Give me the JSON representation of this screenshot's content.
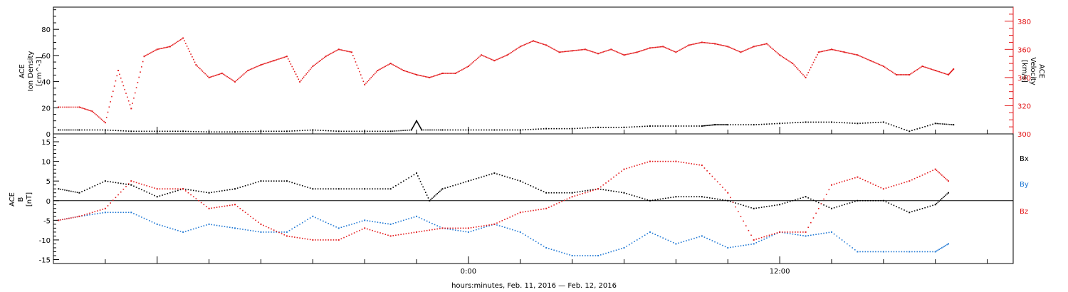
{
  "chart_data": [
    {
      "type": "scatter",
      "panel": "top",
      "ylabel_left": [
        "ACE",
        "Ion Density",
        "[cm^-3]"
      ],
      "ylabel_right": [
        "ACE",
        "Velocity",
        "[km/s]"
      ],
      "ylim_left": [
        0,
        97
      ],
      "ylim_right": [
        300,
        390
      ],
      "left_ticks": [
        "0",
        "20",
        "40",
        "60",
        "80"
      ],
      "right_ticks": [
        "300",
        "320",
        "340",
        "360",
        "380"
      ],
      "series": [
        {
          "name": "",
          "axis": "left",
          "color": "#000000",
          "x": [
            -15.8,
            -15,
            -14,
            -13,
            -12,
            -11,
            -10,
            -9,
            -8,
            -7,
            -6,
            -5,
            -4,
            -3,
            -2.2,
            -2,
            -1.8,
            -1,
            0,
            1,
            2,
            3,
            4,
            5,
            6,
            7,
            8,
            9,
            9.5,
            10,
            11,
            12,
            13,
            14,
            15,
            16,
            17,
            18,
            18.7
          ],
          "y": [
            3,
            3,
            3,
            2,
            2,
            2,
            1.5,
            1.5,
            2,
            2,
            3,
            2,
            2,
            2,
            3,
            10,
            3,
            3,
            3,
            3,
            3,
            4,
            4,
            5,
            5,
            6,
            6,
            6,
            7,
            7,
            7,
            8,
            9,
            9,
            8,
            9,
            2,
            8,
            7
          ]
        },
        {
          "name": "",
          "axis": "right",
          "color": "#e31a1c",
          "x": [
            -15.8,
            -15,
            -14.5,
            -14,
            -13.5,
            -13,
            -12.5,
            -12,
            -11.5,
            -11,
            -10.5,
            -10,
            -9.5,
            -9,
            -8.5,
            -8,
            -7.5,
            -7,
            -6.5,
            -6,
            -5.5,
            -5,
            -4.5,
            -4,
            -3.5,
            -3,
            -2.5,
            -2,
            -1.5,
            -1,
            -0.5,
            0,
            0.5,
            1,
            1.5,
            2,
            2.5,
            3,
            3.5,
            4,
            4.5,
            5,
            5.5,
            6,
            6.5,
            7,
            7.5,
            8,
            8.5,
            9,
            9.5,
            10,
            10.5,
            11,
            11.5,
            12,
            12.5,
            13,
            13.5,
            14,
            14.5,
            15,
            15.5,
            16,
            16.5,
            17,
            17.5,
            18,
            18.5,
            18.7
          ],
          "y": [
            319,
            319,
            316,
            308,
            345,
            318,
            355,
            360,
            362,
            368,
            349,
            340,
            343,
            337,
            345,
            349,
            352,
            355,
            337,
            348,
            355,
            360,
            358,
            335,
            345,
            350,
            345,
            342,
            340,
            343,
            343,
            348,
            356,
            352,
            356,
            362,
            366,
            363,
            358,
            359,
            360,
            357,
            360,
            356,
            358,
            361,
            362,
            358,
            363,
            365,
            364,
            362,
            358,
            362,
            364,
            356,
            350,
            340,
            358,
            360,
            358,
            356,
            352,
            348,
            342,
            342,
            348,
            345,
            342,
            346
          ]
        }
      ]
    },
    {
      "type": "scatter",
      "panel": "bottom",
      "ylabel": [
        "ACE",
        "B",
        "[nT]"
      ],
      "ylim": [
        -16,
        17
      ],
      "ticks": [
        "-15",
        "-10",
        "-5",
        "0",
        "5",
        "10",
        "15"
      ],
      "zero_line": true,
      "legend_position": "right",
      "series": [
        {
          "name": "Bx",
          "color": "#000000",
          "x": [
            -15.8,
            -15,
            -14,
            -13,
            -12,
            -11,
            -10,
            -9,
            -8,
            -7,
            -6,
            -5,
            -4,
            -3,
            -2,
            -1.5,
            -1,
            0,
            1,
            2,
            3,
            4,
            5,
            6,
            7,
            8,
            9,
            10,
            11,
            12,
            13,
            14,
            15,
            16,
            17,
            18,
            18.5
          ],
          "y": [
            3,
            2,
            5,
            4,
            1,
            3,
            2,
            3,
            5,
            5,
            3,
            3,
            3,
            3,
            7,
            0,
            3,
            5,
            7,
            5,
            2,
            2,
            3,
            2,
            0,
            1,
            1,
            0,
            -2,
            -1,
            1,
            -2,
            0,
            0,
            -3,
            -1,
            2
          ]
        },
        {
          "name": "By",
          "color": "#1f78d4",
          "x": [
            -15.8,
            -15,
            -14,
            -13,
            -12,
            -11,
            -10,
            -9,
            -8,
            -7,
            -6,
            -5,
            -4,
            -3,
            -2,
            -1,
            0,
            1,
            2,
            3,
            4,
            5,
            6,
            7,
            8,
            9,
            10,
            11,
            12,
            13,
            14,
            15,
            16,
            17,
            18,
            18.5
          ],
          "y": [
            -5,
            -4,
            -3,
            -3,
            -6,
            -8,
            -6,
            -7,
            -8,
            -8,
            -4,
            -7,
            -5,
            -6,
            -4,
            -7,
            -8,
            -6,
            -8,
            -12,
            -14,
            -14,
            -12,
            -8,
            -11,
            -9,
            -12,
            -11,
            -8,
            -9,
            -8,
            -13,
            -13,
            -13,
            -13,
            -11
          ]
        },
        {
          "name": "Bz",
          "color": "#e31a1c",
          "x": [
            -15.8,
            -15,
            -14,
            -13,
            -12,
            -11,
            -10,
            -9,
            -8,
            -7,
            -6,
            -5,
            -4,
            -3,
            -2,
            -1,
            0,
            1,
            2,
            3,
            4,
            5,
            6,
            7,
            8,
            9,
            10,
            11,
            12,
            13,
            14,
            15,
            16,
            17,
            18,
            18.5
          ],
          "y": [
            -5,
            -4,
            -2,
            5,
            3,
            3,
            -2,
            -1,
            -6,
            -9,
            -10,
            -10,
            -7,
            -9,
            -8,
            -7,
            -7,
            -6,
            -3,
            -2,
            1,
            3,
            8,
            10,
            10,
            9,
            2,
            -10,
            -8,
            -8,
            4,
            6,
            3,
            5,
            8,
            5
          ]
        }
      ]
    }
  ],
  "x_axis": {
    "xlim": [
      -16,
      21
    ],
    "tick_labels": [
      {
        "x": 0,
        "label": "0:00"
      },
      {
        "x": 12,
        "label": "12:00"
      }
    ],
    "xlabel": "hours:minutes, Feb. 11, 2016 — Feb. 12, 2016"
  }
}
